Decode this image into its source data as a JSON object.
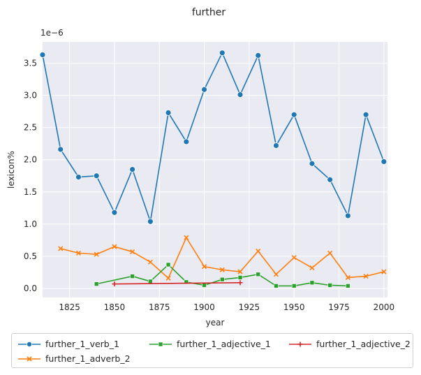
{
  "chart_data": {
    "type": "line",
    "title": "further",
    "xlabel": "year",
    "ylabel": "lexicon%",
    "offset_label": "1e−6",
    "xlim": [
      1810,
      2002
    ],
    "ylim": [
      -0.14,
      3.83
    ],
    "xticks": [
      1825,
      1850,
      1875,
      1900,
      1925,
      1950,
      1975,
      2000
    ],
    "yticks": [
      0.0,
      0.5,
      1.0,
      1.5,
      2.0,
      2.5,
      3.0,
      3.5
    ],
    "ytick_labels": [
      "0.0",
      "0.5",
      "1.0",
      "1.5",
      "2.0",
      "2.5",
      "3.0",
      "3.5"
    ],
    "grid": true,
    "legend_position": "bottom",
    "series": [
      {
        "name": "further_1_verb_1",
        "color": "#1f77b4",
        "marker": "circle",
        "x": [
          1810,
          1820,
          1830,
          1840,
          1850,
          1860,
          1870,
          1880,
          1890,
          1900,
          1910,
          1920,
          1930,
          1940,
          1950,
          1960,
          1970,
          1980,
          1990,
          2000
        ],
        "y": [
          3.63,
          2.16,
          1.73,
          1.75,
          1.18,
          1.85,
          1.04,
          2.73,
          2.28,
          3.09,
          3.66,
          3.01,
          3.62,
          2.22,
          2.7,
          1.94,
          1.69,
          1.13,
          2.7,
          1.97
        ]
      },
      {
        "name": "further_1_adverb_2",
        "color": "#ff7f0e",
        "marker": "x",
        "x": [
          1820,
          1830,
          1840,
          1850,
          1860,
          1870,
          1880,
          1890,
          1900,
          1910,
          1920,
          1930,
          1940,
          1950,
          1960,
          1970,
          1980,
          1990,
          2000
        ],
        "y": [
          0.62,
          0.55,
          0.53,
          0.65,
          0.57,
          0.41,
          0.16,
          0.79,
          0.34,
          0.29,
          0.26,
          0.58,
          0.22,
          0.48,
          0.32,
          0.55,
          0.17,
          0.19,
          0.26
        ]
      },
      {
        "name": "further_1_adjective_1",
        "color": "#2ca02c",
        "marker": "square",
        "x": [
          1840,
          1860,
          1870,
          1880,
          1890,
          1900,
          1910,
          1920,
          1930,
          1940,
          1950,
          1960,
          1970,
          1980
        ],
        "y": [
          0.07,
          0.19,
          0.11,
          0.37,
          0.1,
          0.05,
          0.14,
          0.17,
          0.22,
          0.04,
          0.04,
          0.09,
          0.05,
          0.04
        ]
      },
      {
        "name": "further_1_adjective_2",
        "color": "#d62728",
        "marker": "plus",
        "x": [
          1850,
          1920
        ],
        "y": [
          0.07,
          0.09
        ]
      }
    ]
  }
}
